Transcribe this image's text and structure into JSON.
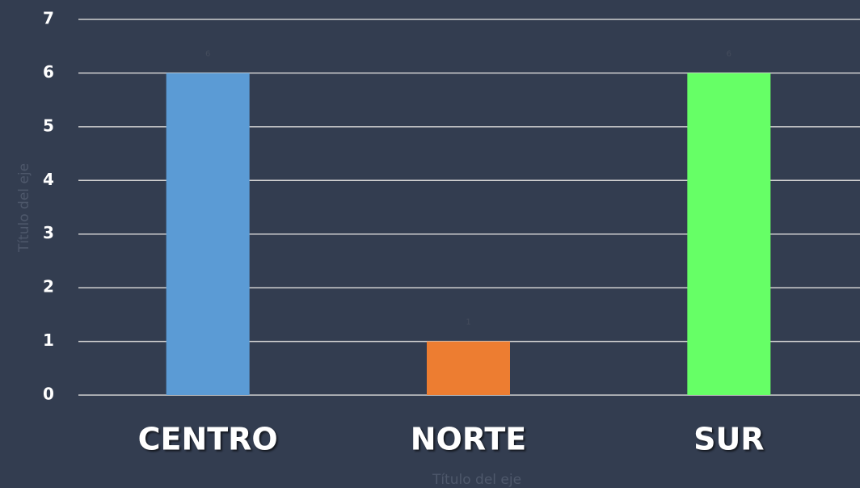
{
  "chart_data": {
    "type": "bar",
    "categories": [
      "CENTRO",
      "NORTE",
      "SUR"
    ],
    "values": [
      6,
      1,
      6
    ],
    "colors": [
      "#5b9bd5",
      "#ed7d31",
      "#66ff66"
    ],
    "x_label": "Título del eje",
    "y_label": "Título del eje",
    "ylim": [
      0,
      7
    ],
    "yticks": [
      0,
      1,
      2,
      3,
      4,
      5,
      6,
      7
    ],
    "grid": true
  }
}
